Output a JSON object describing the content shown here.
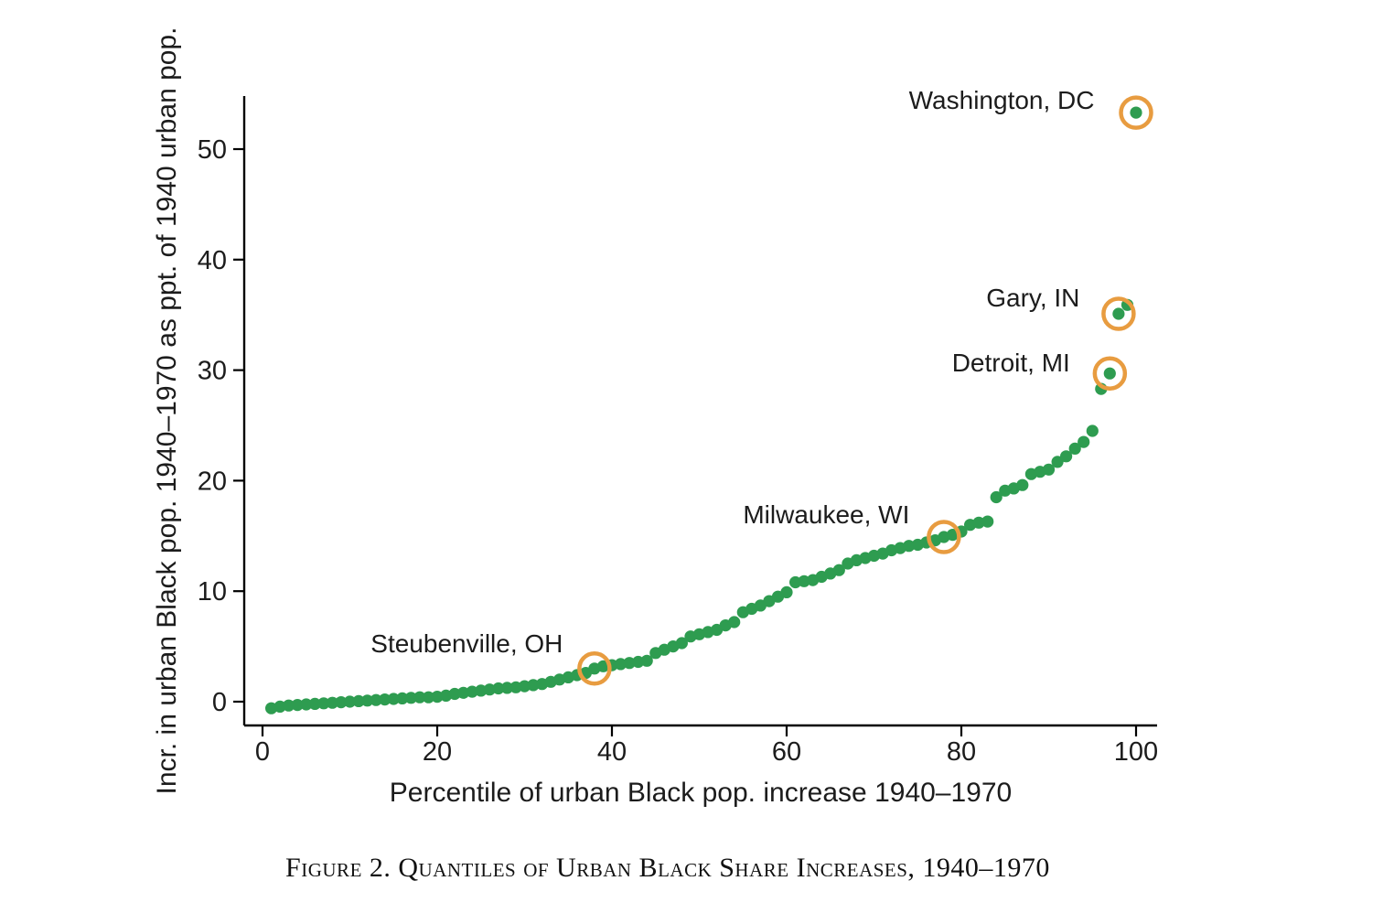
{
  "figure": {
    "caption": "Figure 2.  Quantiles of Urban Black Share Increases, 1940–1970"
  },
  "chart_data": {
    "type": "scatter",
    "title": "",
    "xlabel": "Percentile of urban Black pop. increase 1940–1970",
    "ylabel": "Incr. in urban Black pop. 1940–1970 as ppt. of 1940 urban pop.",
    "xlim": [
      -2,
      102.5
    ],
    "ylim": [
      -2.2,
      55
    ],
    "xticks": [
      0,
      20,
      40,
      60,
      80,
      100
    ],
    "yticks": [
      0,
      10,
      20,
      30,
      40,
      50
    ],
    "grid": false,
    "legend": null,
    "marker_color": "#2E9C50",
    "highlight_ring_color": "#E89C40",
    "points": [
      [
        1,
        -0.6
      ],
      [
        2,
        -0.45
      ],
      [
        3,
        -0.35
      ],
      [
        4,
        -0.3
      ],
      [
        5,
        -0.25
      ],
      [
        6,
        -0.2
      ],
      [
        7,
        -0.15
      ],
      [
        8,
        -0.1
      ],
      [
        9,
        -0.05
      ],
      [
        10,
        0
      ],
      [
        11,
        0.05
      ],
      [
        12,
        0.1
      ],
      [
        13,
        0.15
      ],
      [
        14,
        0.2
      ],
      [
        15,
        0.25
      ],
      [
        16,
        0.3
      ],
      [
        17,
        0.35
      ],
      [
        18,
        0.4
      ],
      [
        19,
        0.4
      ],
      [
        20,
        0.45
      ],
      [
        21,
        0.55
      ],
      [
        22,
        0.7
      ],
      [
        23,
        0.8
      ],
      [
        24,
        0.9
      ],
      [
        25,
        1.0
      ],
      [
        26,
        1.1
      ],
      [
        27,
        1.2
      ],
      [
        28,
        1.25
      ],
      [
        29,
        1.3
      ],
      [
        30,
        1.4
      ],
      [
        31,
        1.5
      ],
      [
        32,
        1.6
      ],
      [
        33,
        1.8
      ],
      [
        34,
        2.0
      ],
      [
        35,
        2.2
      ],
      [
        36,
        2.4
      ],
      [
        37,
        2.6
      ],
      [
        38,
        3.0
      ],
      [
        39,
        3.2
      ],
      [
        40,
        3.3
      ],
      [
        41,
        3.4
      ],
      [
        42,
        3.5
      ],
      [
        43,
        3.6
      ],
      [
        44,
        3.7
      ],
      [
        45,
        4.4
      ],
      [
        46,
        4.7
      ],
      [
        47,
        5.0
      ],
      [
        48,
        5.3
      ],
      [
        49,
        5.9
      ],
      [
        50,
        6.1
      ],
      [
        51,
        6.3
      ],
      [
        52,
        6.5
      ],
      [
        53,
        6.9
      ],
      [
        54,
        7.2
      ],
      [
        55,
        8.1
      ],
      [
        56,
        8.4
      ],
      [
        57,
        8.7
      ],
      [
        58,
        9.1
      ],
      [
        59,
        9.5
      ],
      [
        60,
        9.9
      ],
      [
        61,
        10.8
      ],
      [
        62,
        10.9
      ],
      [
        63,
        11.0
      ],
      [
        64,
        11.3
      ],
      [
        65,
        11.6
      ],
      [
        66,
        11.9
      ],
      [
        67,
        12.5
      ],
      [
        68,
        12.8
      ],
      [
        69,
        13.0
      ],
      [
        70,
        13.2
      ],
      [
        71,
        13.4
      ],
      [
        72,
        13.7
      ],
      [
        73,
        13.9
      ],
      [
        74,
        14.1
      ],
      [
        75,
        14.2
      ],
      [
        76,
        14.4
      ],
      [
        77,
        14.6
      ],
      [
        78,
        14.9
      ],
      [
        79,
        15.1
      ],
      [
        80,
        15.4
      ],
      [
        81,
        16.0
      ],
      [
        82,
        16.2
      ],
      [
        83,
        16.3
      ],
      [
        84,
        18.5
      ],
      [
        85,
        19.1
      ],
      [
        86,
        19.3
      ],
      [
        87,
        19.6
      ],
      [
        88,
        20.6
      ],
      [
        89,
        20.8
      ],
      [
        90,
        21.0
      ],
      [
        91,
        21.7
      ],
      [
        92,
        22.2
      ],
      [
        93,
        22.9
      ],
      [
        94,
        23.5
      ],
      [
        95,
        24.5
      ],
      [
        96,
        28.3
      ],
      [
        97,
        29.7
      ],
      [
        98,
        35.1
      ],
      [
        99,
        35.9
      ],
      [
        100,
        53.3
      ]
    ],
    "annotations": [
      {
        "label": "Washington, DC",
        "percentile": 100,
        "value": 53.3
      },
      {
        "label": "Gary, IN",
        "percentile": 98,
        "value": 35.1
      },
      {
        "label": "Detroit, MI",
        "percentile": 97,
        "value": 29.7
      },
      {
        "label": "Milwaukee, WI",
        "percentile": 78,
        "value": 14.9
      },
      {
        "label": "Steubenville, OH",
        "percentile": 38,
        "value": 3.0
      }
    ]
  }
}
